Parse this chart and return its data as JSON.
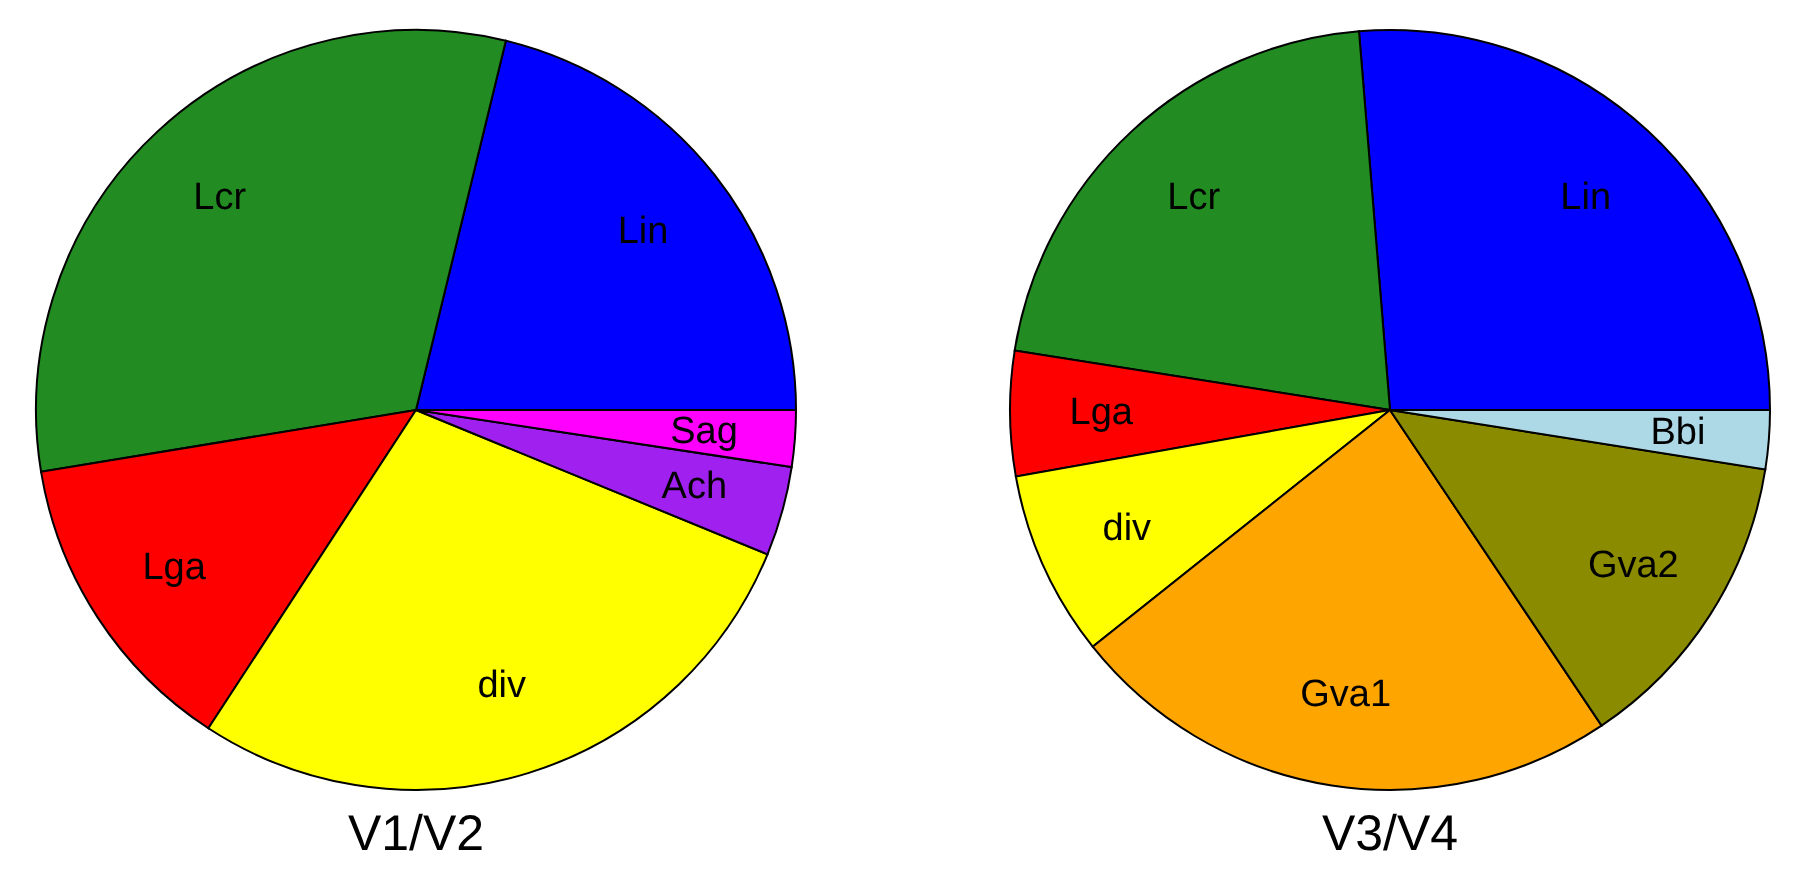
{
  "chart_data": [
    {
      "type": "pie",
      "title": "V1/V2",
      "categories": [
        "Lin",
        "Lcr",
        "Lga",
        "div",
        "Ach",
        "Sag"
      ],
      "values": [
        21.2,
        31.4,
        13.2,
        28.0,
        3.8,
        2.4
      ],
      "colors": [
        "#0000ff",
        "#228b22",
        "#ff0000",
        "#ffff00",
        "#a020f0",
        "#ff00ff"
      ]
    },
    {
      "type": "pie",
      "title": "V3/V4",
      "categories": [
        "Lin",
        "Lcr",
        "Lga",
        "div",
        "Gva1",
        "Gva2",
        "Bbi"
      ],
      "values": [
        26.3,
        21.2,
        5.3,
        7.9,
        23.7,
        13.1,
        2.5
      ],
      "colors": [
        "#0000ff",
        "#228b22",
        "#ff0000",
        "#ffff00",
        "#ffa500",
        "#8b8b00",
        "#add8e6"
      ]
    }
  ]
}
